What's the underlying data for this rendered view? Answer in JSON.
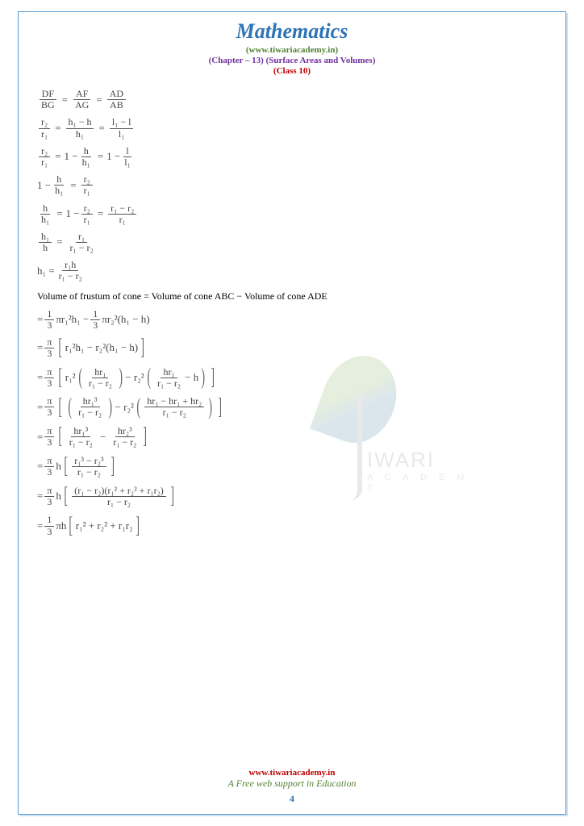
{
  "header": {
    "title": "Mathematics",
    "website": "(www.tiwariacademy.in)",
    "chapter": "(Chapter – 13) (Surface Areas and Volumes)",
    "class_line": "(Class 10)"
  },
  "watermark": {
    "brand_main": "IWARI",
    "brand_sub": "A C A D E M Y"
  },
  "proportion": {
    "lhs1_num": "DF",
    "lhs1_den": "BG",
    "lhs2_num": "AF",
    "lhs2_den": "AG",
    "lhs3_num": "AD",
    "lhs3_den": "AB"
  },
  "eq2": {
    "a_num": "r₂",
    "a_den": "r₁",
    "b_num": "h₁ − h",
    "b_den": "h₁",
    "c_num": "l₁ − l",
    "c_den": "l₁"
  },
  "eq3": {
    "a_num": "r₂",
    "a_den": "r₁",
    "b_pre": "1 −",
    "b_num": "h",
    "b_den": "h₁",
    "c_pre": "1 −",
    "c_num": "l",
    "c_den": "l₁"
  },
  "eq4": {
    "lhs_pre": "1 −",
    "lhs_num": "h",
    "lhs_den": "h₁",
    "rhs_num": "r₂",
    "rhs_den": "r₁"
  },
  "eq5": {
    "lhs_num": "h",
    "lhs_den": "h₁",
    "mid_pre": "1 −",
    "mid_num": "r₂",
    "mid_den": "r₁",
    "rhs_num": "r₁ − r₂",
    "rhs_den": "r₁"
  },
  "eq6": {
    "lhs_num": "h₁",
    "lhs_den": "h",
    "rhs_num": "r₁",
    "rhs_den": "r₁ − r₂"
  },
  "eq7": {
    "lhs": "h₁ =",
    "rhs_num": "r₁h",
    "rhs_den": "r₁ − r₂"
  },
  "textline": "Volume of frustum of cone = Volume of cone ABC − Volume of cone ADE",
  "v1": {
    "a_num": "1",
    "a_den": "3",
    "a_post": "πr₁²h₁ −",
    "b_num": "1",
    "b_den": "3",
    "b_post": "πr₂²(h₁ − h)"
  },
  "v2": {
    "pre_num": "π",
    "pre_den": "3",
    "inner": "r₁²h₁ − r₂²(h₁ − h)"
  },
  "v3": {
    "pre_num": "π",
    "pre_den": "3",
    "t1_pre": "r₁²",
    "t1_num": "hr₁",
    "t1_den": "r₁ − r₂",
    "t2_pre": "− r₂²",
    "t2_num": "hr₁",
    "t2_den": "r₁ − r₂",
    "t2_post": "− h"
  },
  "v4": {
    "pre_num": "π",
    "pre_den": "3",
    "t1_num": "hr₁³",
    "t1_den": "r₁ − r₂",
    "t2_pre": "− r₂²",
    "t2_num": "hr₁ − hr₁ + hr₂",
    "t2_den": "r₁ − r₂"
  },
  "v5": {
    "pre_num": "π",
    "pre_den": "3",
    "t1_num": "hr₁³",
    "t1_den": "r₁ − r₂",
    "sep": "−",
    "t2_num": "hr₂³",
    "t2_den": "r₁ − r₂"
  },
  "v6": {
    "pre_num": "π",
    "pre_den": "3",
    "h": "h",
    "t_num": "r₁³ − r₂³",
    "t_den": "r₁ − r₂"
  },
  "v7": {
    "pre_num": "π",
    "pre_den": "3",
    "h": "h",
    "t_num": "(r₁ − r₂)(r₁² + r₂² + r₁r₂)",
    "t_den": "r₁ − r₂"
  },
  "v8": {
    "pre_num": "1",
    "pre_den": "3",
    "post": "πh",
    "inner": "r₁² + r₂² + r₁r₂"
  },
  "footer": {
    "website": "www.tiwariacademy.in",
    "tagline": "A Free web support in Education",
    "pagenum": "4"
  },
  "colors": {
    "title": "#2e74b5",
    "website": "#548235",
    "chapter": "#7030a0",
    "class": "#c00000",
    "border": "#5b9bd5"
  }
}
